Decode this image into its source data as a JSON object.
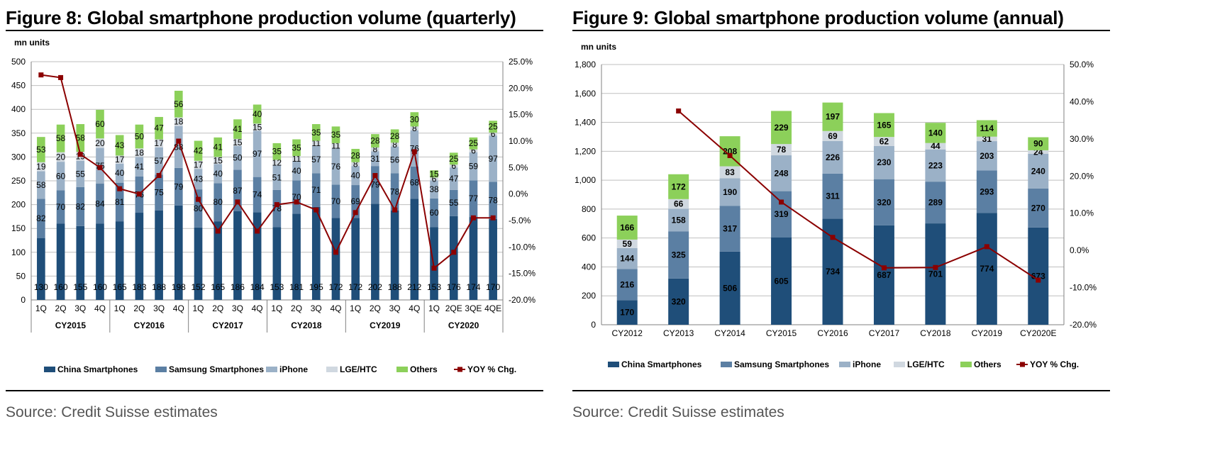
{
  "figures": [
    {
      "title": "Figure 8: Global smartphone production volume (quarterly)",
      "source": "Source: Credit Suisse estimates"
    },
    {
      "title": "Figure 9: Global smartphone production volume (annual)",
      "source": "Source: Credit Suisse estimates"
    }
  ],
  "colors": {
    "china": "#1f4e79",
    "samsung": "#5b7fa3",
    "iphone": "#9bb1c7",
    "lge": "#d0d8e0",
    "others": "#8cd05a",
    "yoy": "#8b0000"
  },
  "chart_data": [
    {
      "type": "bar",
      "stacked": true,
      "title": "Figure 8: Global smartphone production volume (quarterly)",
      "ylabel": "mn units",
      "ylim": [
        0,
        500
      ],
      "yticks": [
        "0",
        "50",
        "100",
        "150",
        "200",
        "250",
        "300",
        "350",
        "400",
        "450",
        "500"
      ],
      "y2lim": [
        -20,
        25
      ],
      "y2ticks": [
        "-20.0%",
        "-15.0%",
        "-10.0%",
        "-5.0%",
        "0.0%",
        "5.0%",
        "10.0%",
        "15.0%",
        "20.0%",
        "25.0%"
      ],
      "categories": [
        "1Q",
        "2Q",
        "3Q",
        "4Q",
        "1Q",
        "2Q",
        "3Q",
        "4Q",
        "1Q",
        "2Q",
        "3Q",
        "4Q",
        "1Q",
        "2Q",
        "3Q",
        "4Q",
        "1Q",
        "2Q",
        "3Q",
        "4Q",
        "1Q",
        "2QE",
        "3QE",
        "4QE"
      ],
      "groups": [
        "CY2015",
        "CY2016",
        "CY2017",
        "CY2018",
        "CY2019",
        "CY2020"
      ],
      "series": [
        {
          "name": "China Smartphones",
          "values": [
            130,
            160,
            155,
            160,
            165,
            183,
            188,
            198,
            152,
            165,
            186,
            184,
            153,
            181,
            195,
            172,
            172,
            202,
            188,
            212,
            153,
            176,
            174,
            170
          ]
        },
        {
          "name": "Samsung Smartphones",
          "values": [
            82,
            70,
            82,
            84,
            81,
            76,
            75,
            79,
            80,
            80,
            87,
            74,
            78,
            70,
            71,
            70,
            69,
            79,
            78,
            68,
            60,
            55,
            77,
            78
          ]
        },
        {
          "name": "iPhone",
          "values": [
            58,
            60,
            55,
            75,
            40,
            41,
            57,
            88,
            43,
            40,
            50,
            97,
            51,
            40,
            57,
            76,
            40,
            31,
            56,
            76,
            38,
            47,
            59,
            97
          ]
        },
        {
          "name": "LGE/HTC",
          "values": [
            19,
            20,
            19,
            20,
            17,
            18,
            17,
            18,
            17,
            15,
            15,
            15,
            12,
            11,
            11,
            11,
            8,
            8,
            8,
            8,
            6,
            6,
            6,
            6
          ]
        },
        {
          "name": "Others",
          "values": [
            53,
            58,
            58,
            60,
            43,
            50,
            47,
            56,
            42,
            41,
            41,
            40,
            35,
            35,
            35,
            35,
            28,
            28,
            28,
            30,
            15,
            25,
            25,
            25
          ]
        },
        {
          "name": "YOY % Chg.",
          "type": "line",
          "axis": "right",
          "values": [
            22.5,
            22,
            7.5,
            5,
            1,
            0,
            3.5,
            10,
            -1,
            -7,
            -1.5,
            -7,
            -2,
            -1.5,
            -3,
            -11,
            -3.5,
            3.5,
            -3,
            8,
            -14,
            -11,
            -4.5,
            -4.5
          ]
        }
      ],
      "legend": [
        "China Smartphones",
        "Samsung Smartphones",
        "iPhone",
        "LGE/HTC",
        "Others",
        "YOY % Chg."
      ],
      "legend_position": "bottom"
    },
    {
      "type": "bar",
      "stacked": true,
      "title": "Figure 9: Global smartphone production volume (annual)",
      "ylabel": "mn units",
      "ylim": [
        0,
        1800
      ],
      "yticks": [
        "0",
        "200",
        "400",
        "600",
        "800",
        "1,000",
        "1,200",
        "1,400",
        "1,600",
        "1,800"
      ],
      "y2lim": [
        -20,
        50
      ],
      "y2ticks": [
        "-20.0%",
        "-10.0%",
        "0.0%",
        "10.0%",
        "20.0%",
        "30.0%",
        "40.0%",
        "50.0%"
      ],
      "categories": [
        "CY2012",
        "CY2013",
        "CY2014",
        "CY2015",
        "CY2016",
        "CY2017",
        "CY2018",
        "CY2019",
        "CY2020E"
      ],
      "series": [
        {
          "name": "China Smartphones",
          "values": [
            170,
            320,
            506,
            605,
            734,
            687,
            701,
            774,
            673
          ]
        },
        {
          "name": "Samsung Smartphones",
          "values": [
            216,
            325,
            317,
            319,
            311,
            320,
            289,
            293,
            270
          ]
        },
        {
          "name": "iPhone",
          "values": [
            144,
            158,
            190,
            248,
            226,
            230,
            223,
            203,
            240
          ]
        },
        {
          "name": "LGE/HTC",
          "values": [
            59,
            66,
            83,
            78,
            69,
            62,
            44,
            31,
            24
          ]
        },
        {
          "name": "Others",
          "values": [
            166,
            172,
            208,
            229,
            197,
            165,
            140,
            114,
            90
          ]
        },
        {
          "name": "YOY % Chg.",
          "type": "line",
          "axis": "right",
          "values": [
            null,
            37.5,
            25.5,
            13,
            3.5,
            -4.7,
            -4.6,
            1,
            -8
          ]
        }
      ],
      "legend": [
        "China Smartphones",
        "Samsung Smartphones",
        "iPhone",
        "LGE/HTC",
        "Others",
        "YOY % Chg."
      ],
      "legend_position": "bottom"
    }
  ]
}
